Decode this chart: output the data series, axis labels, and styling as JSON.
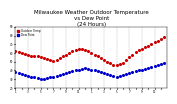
{
  "title": "Milwaukee Weather Outdoor Temperature\nvs Dew Point\n(24 Hours)",
  "title_fontsize": 4.0,
  "background_color": "#ffffff",
  "grid_color": "#aaaaaa",
  "temp_color": "#cc0000",
  "dew_color": "#0000cc",
  "legend_temp": "Outdoor Temp",
  "legend_dew": "Dew Point",
  "xtick_positions": [
    0,
    1,
    2,
    3,
    4,
    5,
    6,
    7,
    8,
    9,
    10,
    11,
    12,
    13,
    14,
    15,
    16,
    17,
    18,
    19,
    20,
    21,
    22,
    23
  ],
  "x_tick_labels": [
    "1",
    "",
    "3",
    "",
    "5",
    "",
    "7",
    "",
    "9",
    "",
    "11",
    "",
    "1",
    "",
    "3",
    "",
    "5",
    "",
    "7",
    "",
    "9",
    "",
    "11",
    ""
  ],
  "xlim": [
    0,
    24
  ],
  "ylim": [
    20,
    90
  ],
  "yticks": [
    20,
    30,
    40,
    50,
    60,
    70,
    80,
    90
  ],
  "temp_x": [
    0,
    0.5,
    1,
    1.5,
    2,
    2.5,
    3,
    3.5,
    4,
    4.5,
    5,
    5.5,
    6,
    6.5,
    7,
    7.5,
    8,
    8.5,
    9,
    9.5,
    10,
    10.5,
    11,
    11.5,
    12,
    12.5,
    13,
    13.5,
    14,
    14.5,
    15,
    15.5,
    16,
    16.5,
    17,
    17.5,
    18,
    18.5,
    19,
    19.5,
    20,
    20.5,
    21,
    21.5,
    22,
    22.5,
    23,
    23.5
  ],
  "temp_y": [
    62,
    61,
    60,
    59,
    58,
    57,
    57,
    56,
    55,
    54,
    53,
    52,
    51,
    52,
    54,
    56,
    58,
    60,
    62,
    63,
    64,
    64,
    63,
    62,
    60,
    58,
    56,
    54,
    52,
    50,
    48,
    46,
    46,
    47,
    49,
    52,
    55,
    58,
    61,
    63,
    65,
    67,
    68,
    70,
    72,
    74,
    76,
    78
  ],
  "dew_x": [
    0,
    0.5,
    1,
    1.5,
    2,
    2.5,
    3,
    3.5,
    4,
    4.5,
    5,
    5.5,
    6,
    6.5,
    7,
    7.5,
    8,
    8.5,
    9,
    9.5,
    10,
    10.5,
    11,
    11.5,
    12,
    12.5,
    13,
    13.5,
    14,
    14.5,
    15,
    15.5,
    16,
    16.5,
    17,
    17.5,
    18,
    18.5,
    19,
    19.5,
    20,
    20.5,
    21,
    21.5,
    22,
    22.5,
    23,
    23.5
  ],
  "dew_y": [
    38,
    37,
    36,
    35,
    34,
    33,
    32,
    31,
    30,
    30,
    31,
    32,
    33,
    34,
    35,
    36,
    37,
    38,
    39,
    40,
    41,
    42,
    43,
    42,
    41,
    40,
    39,
    38,
    37,
    36,
    35,
    34,
    33,
    34,
    35,
    36,
    37,
    38,
    39,
    40,
    41,
    42,
    43,
    44,
    45,
    46,
    47,
    48
  ],
  "vgrid_positions": [
    0,
    2,
    4,
    6,
    8,
    10,
    12,
    14,
    16,
    18,
    20,
    22,
    24
  ]
}
